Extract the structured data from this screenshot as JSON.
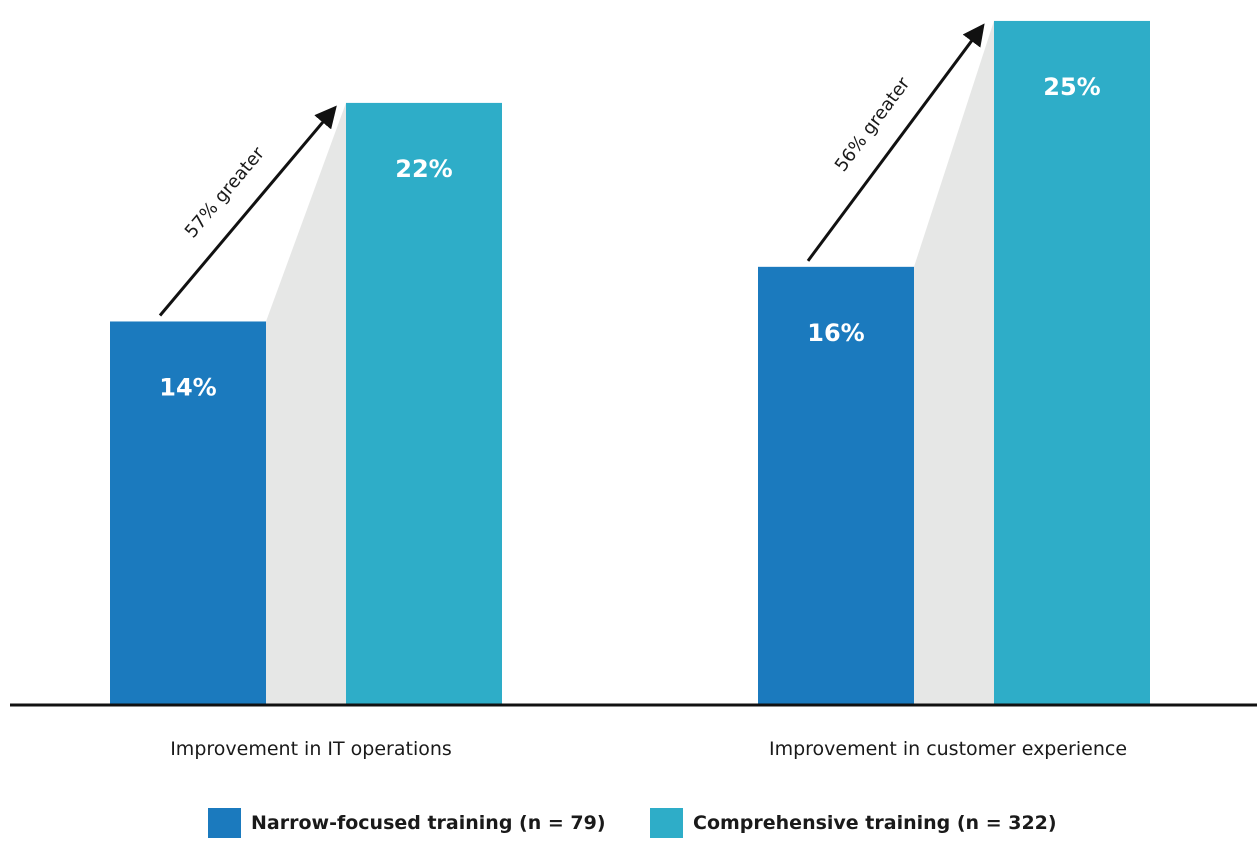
{
  "colors": {
    "narrow": "#1b7abe",
    "comprehensive": "#2eadc8",
    "connector": "#e6e7e6",
    "axis": "#111111"
  },
  "chart_data": {
    "type": "bar",
    "categories": [
      "Improvement in IT operations",
      "Improvement in customer experience"
    ],
    "series": [
      {
        "name": "Narrow-focused training (n = 79)",
        "values": [
          14,
          16
        ],
        "labels": [
          "14%",
          "16%"
        ]
      },
      {
        "name": "Comprehensive training (n = 322)",
        "values": [
          22,
          25
        ],
        "labels": [
          "22%",
          "25%"
        ]
      }
    ],
    "annotations": [
      "57% greater",
      "56% greater"
    ],
    "ylim": [
      0,
      25.4
    ],
    "grid": false,
    "legend_position": "bottom"
  }
}
